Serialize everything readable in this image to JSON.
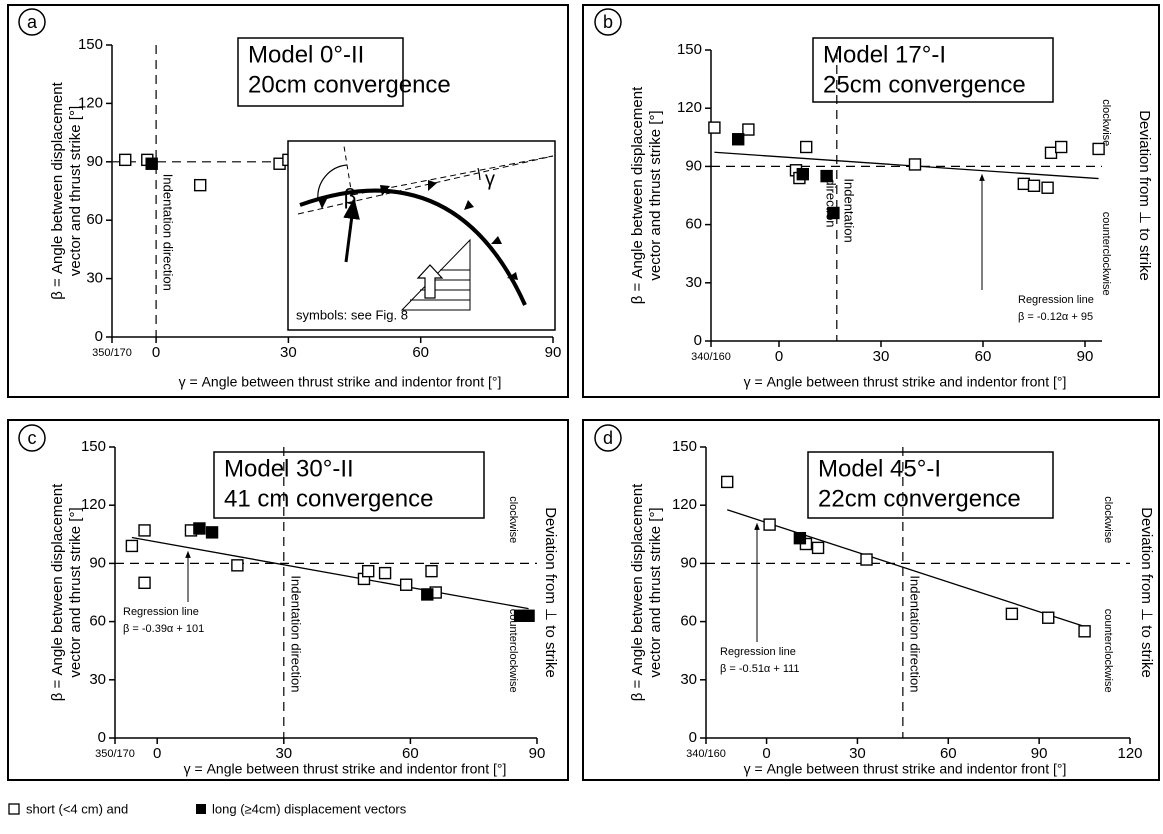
{
  "chart_data": [
    {
      "type": "scatter",
      "panel": "a",
      "title": [
        "Model 0°-II",
        "20cm convergence"
      ],
      "y_label": [
        "β = Angle between displacement",
        "vector and thrust strike [°]"
      ],
      "x_label": "γ = Angle between thrust strike and indentor front [°]",
      "xlim": [
        -10,
        90
      ],
      "xticks": [
        {
          "value": -10,
          "label": "350/170"
        },
        0,
        30,
        60,
        90
      ],
      "ylim": [
        0,
        150
      ],
      "yticks": [
        0,
        30,
        60,
        90,
        120,
        150
      ],
      "reference_beta": 90,
      "indentation_angle": 0,
      "indentation_label": [
        "Indentation direction"
      ],
      "series": [
        {
          "marker": "open",
          "color": "#000000",
          "x": [
            -7,
            -2,
            10,
            28,
            30
          ],
          "values": [
            91,
            91,
            78,
            89,
            91
          ]
        },
        {
          "marker": "filled",
          "color": "#000000",
          "x": [
            -1
          ],
          "values": [
            89
          ]
        }
      ],
      "inset": {
        "beta": "β",
        "gamma": "γ",
        "note": "symbols: see Fig. 8"
      }
    },
    {
      "type": "scatter",
      "panel": "b",
      "title": [
        "Model 17°-I",
        "25cm convergence"
      ],
      "y_label": [
        "β = Angle between displacement",
        "vector and thrust strike [°]"
      ],
      "x_label": "γ = Angle between thrust strike and indentor front [°]",
      "xlim": [
        -20,
        95
      ],
      "xticks": [
        {
          "value": -20,
          "label": "340/160"
        },
        0,
        30,
        60,
        90
      ],
      "ylim": [
        0,
        150
      ],
      "yticks": [
        0,
        30,
        60,
        90,
        120,
        150
      ],
      "reference_beta": 90,
      "indentation_angle": 17,
      "indentation_label": [
        "Indentation",
        "direction"
      ],
      "right_labels": {
        "upper": "clockwise",
        "lower": "counterclockwise",
        "axis": "Deviation from ⊥ to strike"
      },
      "regression": {
        "label": "Regression line",
        "equation": "β = -0.12α + 95",
        "slope": -0.12,
        "intercept": 95
      },
      "series": [
        {
          "marker": "open",
          "color": "#000000",
          "x": [
            -19,
            -9,
            5,
            6,
            8,
            40,
            72,
            75,
            79,
            80,
            83,
            94
          ],
          "values": [
            110,
            109,
            88,
            84,
            100,
            91,
            81,
            80,
            79,
            97,
            100,
            99
          ]
        },
        {
          "marker": "filled",
          "color": "#000000",
          "x": [
            -12,
            7,
            14,
            16
          ],
          "values": [
            104,
            86,
            85,
            66
          ]
        }
      ]
    },
    {
      "type": "scatter",
      "panel": "c",
      "title": [
        "Model 30°-II",
        "41 cm convergence"
      ],
      "y_label": [
        "β = Angle between displacement",
        "vector and thrust strike [°]"
      ],
      "x_label": "γ = Angle between thrust strike and indentor front [°]",
      "xlim": [
        -10,
        90
      ],
      "xticks": [
        {
          "value": -10,
          "label": "350/170"
        },
        0,
        30,
        60,
        90
      ],
      "ylim": [
        0,
        150
      ],
      "yticks": [
        0,
        30,
        60,
        90,
        120,
        150
      ],
      "reference_beta": 90,
      "indentation_angle": 30,
      "indentation_label": [
        "Indentation direction"
      ],
      "right_labels": {
        "upper": "clockwise",
        "lower": "counterclockwise",
        "axis": "Deviation from ⊥ to strike"
      },
      "regression": {
        "label": "Regression line",
        "equation": "β = -0.39α + 101",
        "slope": -0.39,
        "intercept": 101
      },
      "series": [
        {
          "marker": "open",
          "color": "#000000",
          "x": [
            -6,
            -3,
            -3,
            8,
            19,
            49,
            50,
            54,
            59,
            65,
            66
          ],
          "values": [
            99,
            107,
            80,
            107,
            89,
            82,
            86,
            85,
            79,
            86,
            75
          ]
        },
        {
          "marker": "filled",
          "color": "#000000",
          "x": [
            10,
            13,
            64,
            86,
            88
          ],
          "values": [
            108,
            106,
            74,
            63,
            63
          ]
        }
      ]
    },
    {
      "type": "scatter",
      "panel": "d",
      "title": [
        "Model 45°-I",
        "22cm convergence"
      ],
      "y_label": [
        "β = Angle between displacement",
        "vector and thrust strike [°]"
      ],
      "x_label": "γ = Angle between thrust strike and indentor front [°]",
      "xlim": [
        -20,
        120
      ],
      "xticks": [
        {
          "value": -20,
          "label": "340/160"
        },
        0,
        30,
        60,
        90,
        120
      ],
      "ylim": [
        0,
        150
      ],
      "yticks": [
        0,
        30,
        60,
        90,
        120,
        150
      ],
      "reference_beta": 90,
      "indentation_angle": 45,
      "indentation_label": [
        "Indentation direction"
      ],
      "right_labels": {
        "upper": "clockwise",
        "lower": "counterclockwise",
        "axis": "Deviation from ⊥ to strike"
      },
      "regression": {
        "label": "Regression line",
        "equation": "β = -0.51α + 111",
        "slope": -0.51,
        "intercept": 111
      },
      "series": [
        {
          "marker": "open",
          "color": "#000000",
          "x": [
            -13,
            1,
            13,
            17,
            33,
            81,
            93,
            105
          ],
          "values": [
            132,
            110,
            100,
            98,
            92,
            64,
            62,
            55
          ]
        },
        {
          "marker": "filled",
          "color": "#000000",
          "x": [
            11
          ],
          "values": [
            103
          ]
        }
      ]
    }
  ],
  "legend": {
    "items": [
      {
        "label": "short (<4 cm) and",
        "marker": "open"
      },
      {
        "label": "long (≥4cm) displacement vectors",
        "marker": "filled"
      }
    ]
  }
}
